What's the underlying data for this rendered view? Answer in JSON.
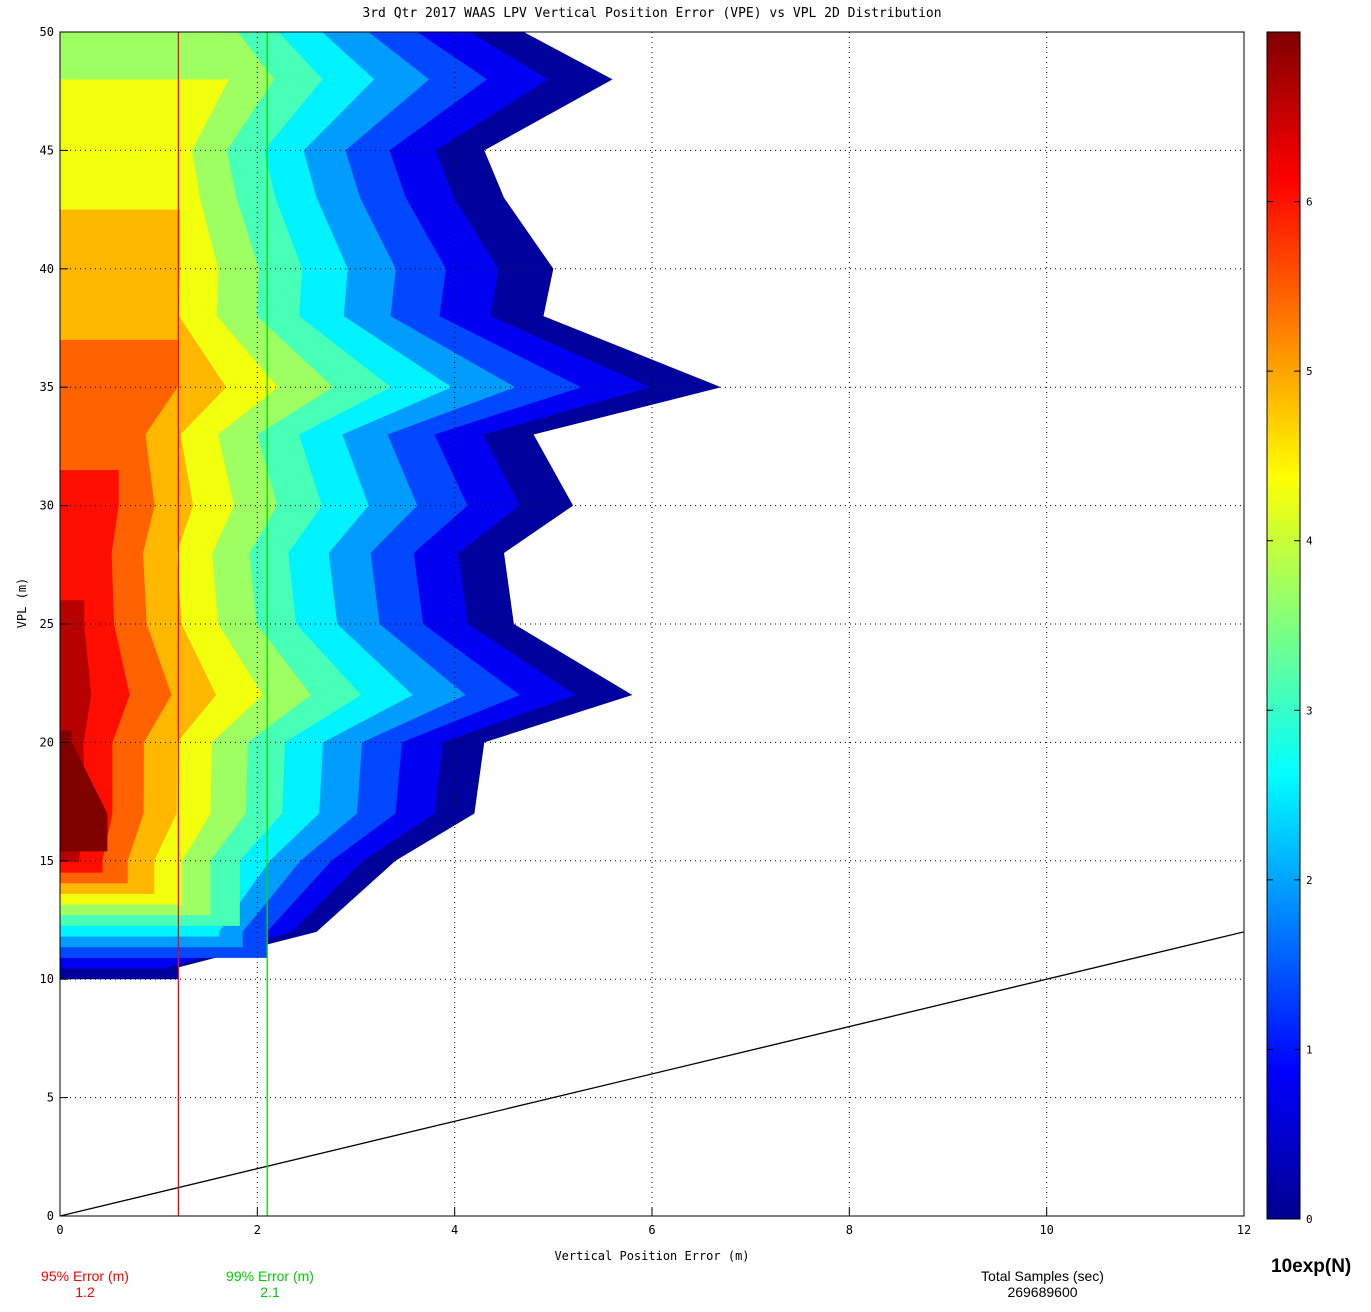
{
  "chart_data": {
    "type": "heatmap",
    "title": "3rd Qtr 2017 WAAS LPV Vertical Position Error (VPE) vs VPL 2D Distribution",
    "xlabel": "Vertical Position Error (m)",
    "ylabel": "VPL (m)",
    "xlim": [
      0,
      12
    ],
    "ylim": [
      0,
      50
    ],
    "xticks": [
      0,
      2,
      4,
      6,
      8,
      10,
      12
    ],
    "yticks": [
      0,
      5,
      10,
      15,
      20,
      25,
      30,
      35,
      40,
      45,
      50
    ],
    "grid": true,
    "colorbar": {
      "label": "10exp(N)",
      "range": [
        0,
        7
      ],
      "ticks": [
        0,
        1,
        2,
        3,
        4,
        5,
        6
      ]
    },
    "surface": {
      "description_units": "log10 of sample count",
      "vpl_rows": [
        10.5,
        12,
        15,
        17,
        20,
        22,
        25,
        28,
        30,
        33,
        35,
        38,
        40,
        43,
        45,
        48,
        50
      ],
      "max_vpe_extent": [
        1.2,
        2.6,
        3.4,
        4.2,
        4.3,
        5.8,
        4.6,
        4.5,
        5.2,
        4.8,
        6.7,
        4.9,
        5.0,
        4.5,
        4.3,
        5.6,
        4.7
      ]
    },
    "reference_line": {
      "name": "VPE = VPL",
      "points": [
        [
          0,
          0
        ],
        [
          12,
          12
        ]
      ],
      "color": "#000000"
    },
    "series": [
      {
        "name": "95% Error (m)",
        "x": 1.2,
        "color": "#ff0000"
      },
      {
        "name": "99% Error (m)",
        "x": 2.1,
        "color": "#00dd00"
      }
    ]
  },
  "footer": {
    "err95_label": "95% Error (m)",
    "err95_value": "1.2",
    "err99_label": "99% Error (m)",
    "err99_value": "2.1",
    "samples_label": "Total Samples (sec)",
    "samples_value": "269689600"
  }
}
